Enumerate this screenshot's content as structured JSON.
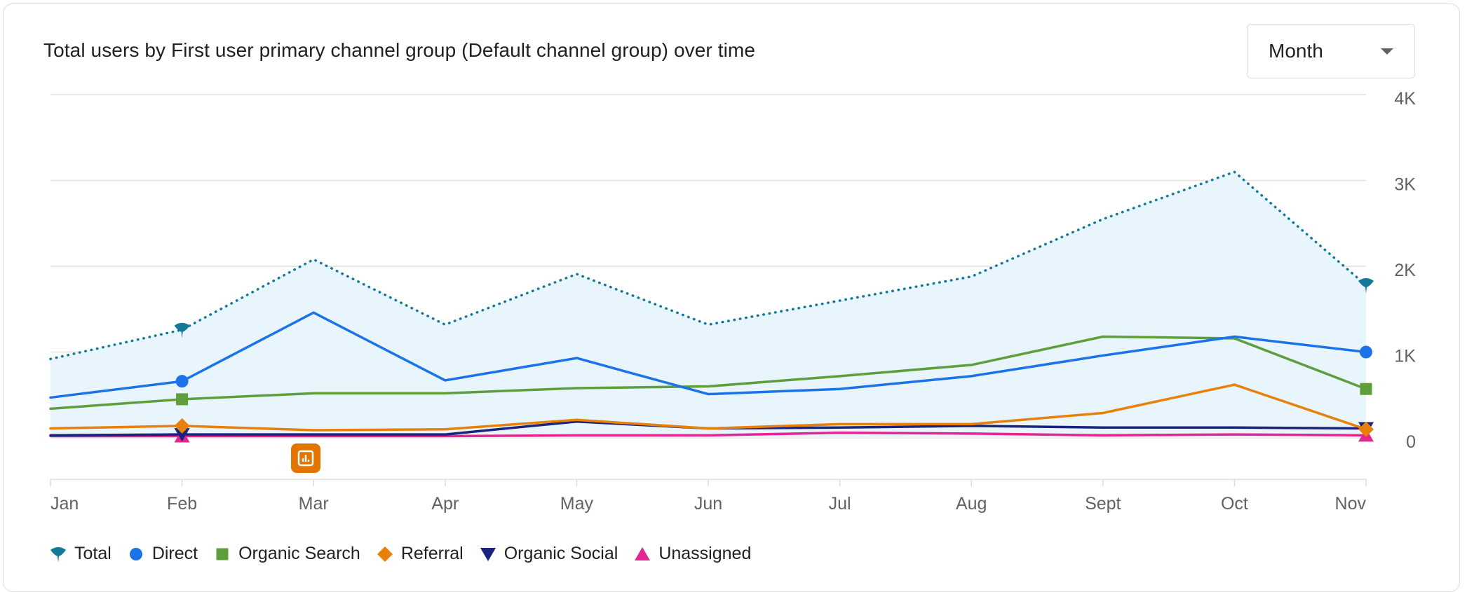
{
  "card": {
    "title": "Total users by First user primary channel group (Default channel group) over time",
    "period_select": {
      "value": "Month"
    }
  },
  "annotation": {
    "icon": "insights-icon",
    "color": "#e37400"
  },
  "chart_data": {
    "type": "line",
    "title": "Total users by First user primary channel group (Default channel group) over time",
    "categories": [
      "Jan",
      "Feb",
      "Mar",
      "Apr",
      "May",
      "Jun",
      "Jul",
      "Aug",
      "Sept",
      "Oct",
      "Nov"
    ],
    "y_ticks": [
      {
        "value": 0,
        "label": "0"
      },
      {
        "value": 1000,
        "label": "1K"
      },
      {
        "value": 2000,
        "label": "2K"
      },
      {
        "value": 3000,
        "label": "3K"
      },
      {
        "value": 4000,
        "label": "4K"
      }
    ],
    "ylim": [
      -500,
      4000
    ],
    "y_axis_side": "right",
    "series": [
      {
        "name": "Total",
        "color": "#12799a",
        "style": "dotted",
        "area_fill": "#e8f5fc",
        "marker": "pin",
        "values": [
          920,
          1260,
          2080,
          1320,
          1910,
          1320,
          1600,
          1880,
          2550,
          3100,
          1780
        ]
      },
      {
        "name": "Direct",
        "color": "#1a73e8",
        "style": "solid",
        "marker": "circle",
        "values": [
          470,
          660,
          1460,
          670,
          930,
          510,
          570,
          720,
          960,
          1180,
          1000
        ]
      },
      {
        "name": "Organic Search",
        "color": "#5e9e3b",
        "style": "solid",
        "marker": "square",
        "values": [
          340,
          450,
          520,
          520,
          580,
          600,
          720,
          850,
          1180,
          1160,
          570
        ]
      },
      {
        "name": "Referral",
        "color": "#e8800b",
        "style": "solid",
        "marker": "diamond",
        "values": [
          110,
          140,
          90,
          100,
          210,
          110,
          160,
          160,
          290,
          620,
          100
        ]
      },
      {
        "name": "Organic Social",
        "color": "#1a237e",
        "style": "solid",
        "marker": "triangle-down",
        "values": [
          30,
          40,
          40,
          40,
          190,
          110,
          120,
          140,
          120,
          120,
          110
        ]
      },
      {
        "name": "Unassigned",
        "color": "#e52592",
        "style": "solid",
        "marker": "triangle-up",
        "values": [
          20,
          20,
          20,
          20,
          30,
          30,
          60,
          50,
          30,
          40,
          30
        ]
      }
    ],
    "marker_categories": [
      "Feb",
      "Nov"
    ],
    "legend_position": "bottom-left"
  }
}
